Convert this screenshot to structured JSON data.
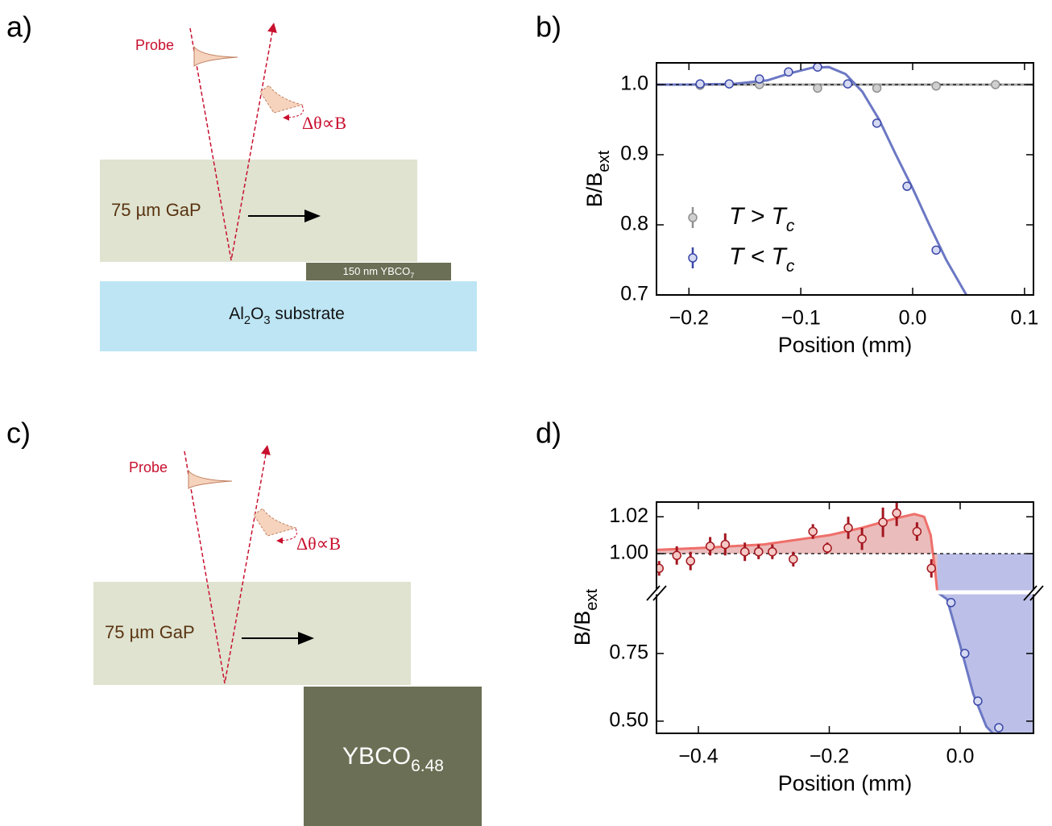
{
  "panel_labels": [
    "a)",
    "b)",
    "c)",
    "d)"
  ],
  "diagram_a": {
    "probe": "Probe",
    "rotation": "Δθ∝B",
    "layer": "75 µm GaP",
    "film": [
      {
        "text": "150 nm YBCO"
      },
      {
        "text": "7",
        "sub": true
      }
    ],
    "substrate": [
      {
        "text": "Al"
      },
      {
        "text": "2",
        "sub": true
      },
      {
        "text": "O"
      },
      {
        "text": "3",
        "sub": true
      },
      {
        "text": " substrate"
      }
    ]
  },
  "diagram_c": {
    "probe": "Probe",
    "rotation": "Δθ∝B",
    "layer": "75 µm GaP",
    "sample": [
      {
        "text": "YBCO"
      },
      {
        "text": "6.48",
        "sub": true
      }
    ]
  },
  "chart_data": [
    {
      "type": "scatter",
      "xlabel": "Position (mm)",
      "ylabel": "B/B",
      "ylabel_sub": "ext",
      "xlim": [
        -0.229,
        0.108
      ],
      "ylim": [
        0.7,
        1.031
      ],
      "xticks": [
        {
          "value": -0.2,
          "label": "−0.2"
        },
        {
          "value": -0.1,
          "label": "−0.1"
        },
        {
          "value": 0,
          "label": "0.0"
        },
        0.1
      ],
      "yticks": [
        0.7,
        0.8,
        0.9,
        {
          "value": 1,
          "label": "1.0"
        }
      ],
      "reference_line": 1,
      "legend": "center left",
      "series": [
        {
          "name": "T > T",
          "name_sub": "c",
          "color": "#8f8f8f",
          "marker_fill": "#cfcfcf",
          "x": [
            -0.19,
            -0.137,
            -0.085,
            -0.032,
            0.021,
            0.074
          ],
          "values": [
            0.999,
            1.0,
            0.995,
            0.995,
            0.998,
            1.0
          ]
        },
        {
          "name": "T < T",
          "name_sub": "c",
          "color": "#3b47a8",
          "marker_fill": "#d5d9f2",
          "x": [
            -0.19,
            -0.164,
            -0.137,
            -0.111,
            -0.085,
            -0.058,
            -0.032,
            -0.005,
            0.021
          ],
          "values": [
            1.001,
            1.001,
            1.008,
            1.018,
            1.025,
            1.001,
            0.945,
            0.855,
            0.764
          ]
        }
      ],
      "fits": [
        {
          "color": "#a8a8a8",
          "x": [
            -0.229,
            0.108
          ],
          "values": [
            1,
            1
          ]
        },
        {
          "color": "#6c78c4",
          "x": [
            -0.229,
            -0.2,
            -0.16,
            -0.13,
            -0.11,
            -0.09,
            -0.075,
            -0.06,
            -0.045,
            -0.03,
            -0.015,
            0.0,
            0.015,
            0.03,
            0.048
          ],
          "values": [
            1.0,
            1.0,
            1.001,
            1.006,
            1.016,
            1.024,
            1.025,
            1.015,
            0.99,
            0.95,
            0.9,
            0.852,
            0.8,
            0.75,
            0.7
          ]
        }
      ]
    },
    {
      "type": "scatter",
      "xlabel": "Position (mm)",
      "ylabel": "B/B",
      "ylabel_sub": "ext",
      "xlim": [
        -0.464,
        0.112
      ],
      "xticks": [
        {
          "value": -0.4,
          "label": "−0.4"
        },
        {
          "value": -0.2,
          "label": "−0.2"
        },
        {
          "value": 0,
          "label": "0.0"
        }
      ],
      "segments": [
        {
          "ylim": [
            0.979,
            1.028
          ],
          "yticks": [
            {
              "value": 1,
              "label": "1.00"
            },
            1.02
          ]
        },
        {
          "ylim": [
            0.455,
            0.976
          ],
          "yticks": [
            {
              "value": 0.5,
              "label": "0.50"
            },
            0.75
          ]
        }
      ],
      "reference_line": 1,
      "series": [
        {
          "color": "#a3161f",
          "marker_fill": "#f5c9c5",
          "segment": 0,
          "x": [
            -0.46,
            -0.433,
            -0.412,
            -0.382,
            -0.359,
            -0.329,
            -0.308,
            -0.287,
            -0.255,
            -0.225,
            -0.203,
            -0.171,
            -0.15,
            -0.118,
            -0.097,
            -0.066,
            -0.044
          ],
          "values": [
            0.992,
            0.999,
            0.996,
            1.004,
            1.005,
            1.001,
            1.001,
            1.001,
            0.997,
            1.012,
            1.003,
            1.014,
            1.008,
            1.017,
            1.022,
            1.012,
            0.992
          ],
          "errors": [
            0.004,
            0.005,
            0.005,
            0.005,
            0.006,
            0.005,
            0.004,
            0.004,
            0.004,
            0.004,
            0.003,
            0.006,
            0.006,
            0.008,
            0.007,
            0.005,
            0.005
          ]
        },
        {
          "color": "#3b47a8",
          "marker_fill": "#d5d9f2",
          "segment": 1,
          "x": [
            -0.014,
            0.007,
            0.027,
            0.059
          ],
          "values": [
            0.938,
            0.75,
            0.574,
            0.476
          ]
        }
      ],
      "fits": [
        {
          "color": "#ef6f6a",
          "fill": "#ebbcbc",
          "segment": 0,
          "x": [
            -0.464,
            -0.4,
            -0.3,
            -0.2,
            -0.15,
            -0.1,
            -0.07,
            -0.055,
            -0.045,
            -0.038,
            -0.035
          ],
          "values": [
            1.002,
            1.003,
            1.005,
            1.01,
            1.014,
            1.019,
            1.0215,
            1.02,
            1.01,
            0.99,
            0.979
          ]
        },
        {
          "color": "#6c78c4",
          "fill": "#bcc0e8",
          "segment": 1,
          "x": [
            -0.035,
            -0.02,
            0.0,
            0.02,
            0.04,
            0.05
          ],
          "values": [
            0.976,
            0.95,
            0.78,
            0.6,
            0.48,
            0.455
          ]
        }
      ]
    }
  ]
}
